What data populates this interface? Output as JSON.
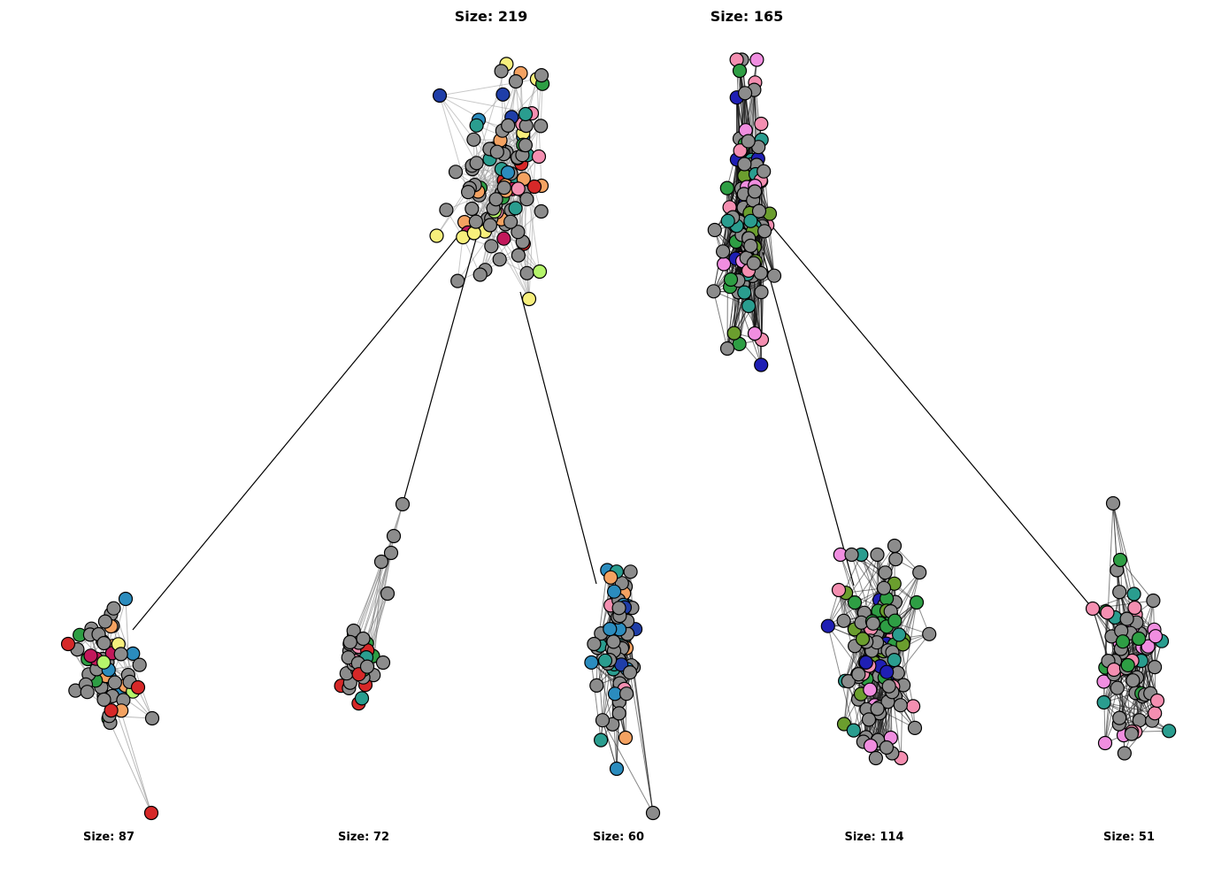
{
  "diagram": {
    "type": "hierarchical community network",
    "top_clusters": [
      {
        "id": "t1",
        "size_label": "Size: 219",
        "palette": [
          "#8c8c8c",
          "#1f3ea8",
          "#2a9d8f",
          "#f48fb1",
          "#f4a261",
          "#2b8cbe",
          "#f7ef7c",
          "#b5f56b",
          "#d62828",
          "#c2185b",
          "#2e9e44"
        ]
      },
      {
        "id": "t2",
        "size_label": "Size: 165",
        "palette": [
          "#8c8c8c",
          "#2e9e44",
          "#6b9e2e",
          "#f08ee0",
          "#f48fb1",
          "#2a9d8f",
          "#1f1fb4"
        ]
      }
    ],
    "bottom_clusters": [
      {
        "id": "b1",
        "parent": "t1",
        "size_label": "Size: 87",
        "palette": [
          "#8c8c8c",
          "#2b8cbe",
          "#f7ef7c",
          "#b5f56b",
          "#d62828",
          "#c2185b",
          "#2e9e44",
          "#f4a261"
        ]
      },
      {
        "id": "b2",
        "parent": "t1",
        "size_label": "Size: 72",
        "palette": [
          "#8c8c8c",
          "#2e9e44",
          "#d62828",
          "#f48fb1",
          "#2a9d8f"
        ]
      },
      {
        "id": "b3",
        "parent": "t1",
        "size_label": "Size: 60",
        "palette": [
          "#8c8c8c",
          "#1f3ea8",
          "#f48fb1",
          "#2b8cbe",
          "#2a9d8f",
          "#f4a261"
        ]
      },
      {
        "id": "b4",
        "parent": "t2",
        "size_label": "Size: 114",
        "palette": [
          "#8c8c8c",
          "#f08ee0",
          "#2e9e44",
          "#6b9e2e",
          "#2a9d8f",
          "#1f1fb4",
          "#f48fb1"
        ]
      },
      {
        "id": "b5",
        "parent": "t2",
        "size_label": "Size: 51",
        "palette": [
          "#8c8c8c",
          "#f08ee0",
          "#2e9e44",
          "#2a9d8f",
          "#f48fb1"
        ]
      }
    ],
    "colors": {
      "node_default": "#8c8c8c",
      "node_stroke": "#000000",
      "edge_intra": "#555555",
      "edge_inter": "#000000"
    }
  }
}
